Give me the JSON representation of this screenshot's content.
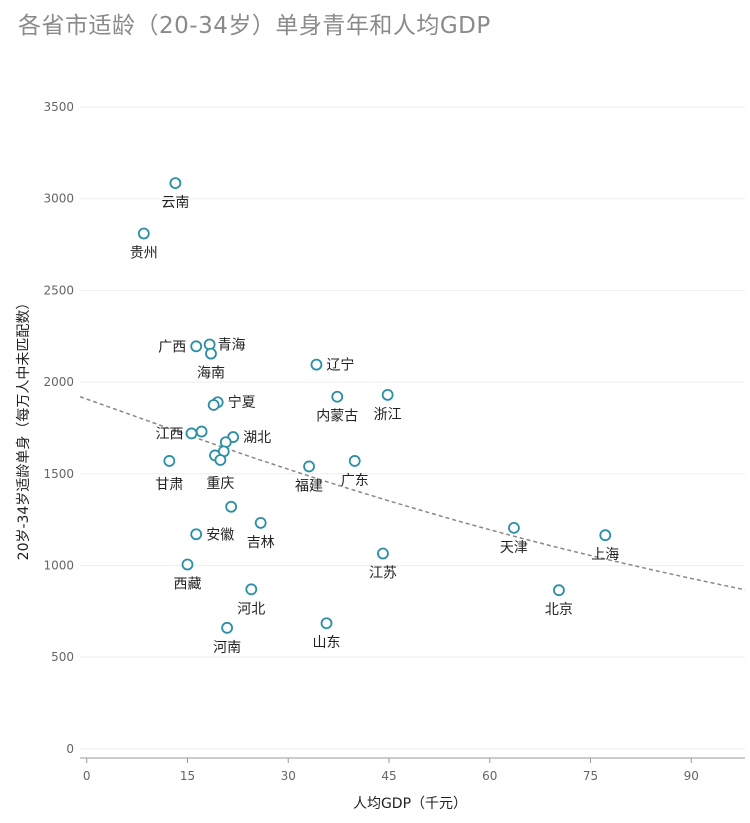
{
  "chart_data": {
    "type": "scatter",
    "title": "各省市适龄（20-34岁）单身青年和人均GDP",
    "xlabel": "人均GDP（千元）",
    "ylabel": "20岁-34岁适龄单身（每万人中未匹配数）",
    "xlim": [
      -1,
      98
    ],
    "ylim": [
      -50,
      3620
    ],
    "xticks": [
      0,
      15,
      30,
      45,
      60,
      75,
      90
    ],
    "yticks": [
      0,
      500,
      1000,
      1500,
      2000,
      2500,
      3000,
      3500
    ],
    "grid": true,
    "colors": {
      "point": "#2a8fa5",
      "trend": "#888888"
    },
    "points": [
      {
        "label": "云南",
        "x": 13.2,
        "y": 3085
      },
      {
        "label": "贵州",
        "x": 8.5,
        "y": 2810
      },
      {
        "label": "广西",
        "x": 16.3,
        "y": 2195
      },
      {
        "label": "青海",
        "x": 18.3,
        "y": 2205
      },
      {
        "label": "海南",
        "x": 18.5,
        "y": 2155
      },
      {
        "label": "辽宁",
        "x": 34.2,
        "y": 2095
      },
      {
        "label": "内蒙古",
        "x": 37.3,
        "y": 1920
      },
      {
        "label": "浙江",
        "x": 44.8,
        "y": 1930
      },
      {
        "label": "宁夏",
        "x": 19.5,
        "y": 1890
      },
      {
        "label": "",
        "x": 18.9,
        "y": 1875
      },
      {
        "label": "江西",
        "x": 15.6,
        "y": 1720
      },
      {
        "label": "",
        "x": 17.1,
        "y": 1730
      },
      {
        "label": "湖北",
        "x": 21.8,
        "y": 1700
      },
      {
        "label": "",
        "x": 20.7,
        "y": 1672
      },
      {
        "label": "",
        "x": 20.4,
        "y": 1622
      },
      {
        "label": "",
        "x": 19.1,
        "y": 1600
      },
      {
        "label": "重庆",
        "x": 19.9,
        "y": 1575
      },
      {
        "label": "甘肃",
        "x": 12.3,
        "y": 1570
      },
      {
        "label": "福建",
        "x": 33.1,
        "y": 1540
      },
      {
        "label": "广东",
        "x": 39.9,
        "y": 1570
      },
      {
        "label": "",
        "x": 21.5,
        "y": 1320
      },
      {
        "label": "吉林",
        "x": 25.9,
        "y": 1232
      },
      {
        "label": "安徽",
        "x": 16.3,
        "y": 1170
      },
      {
        "label": "天津",
        "x": 63.6,
        "y": 1205
      },
      {
        "label": "上海",
        "x": 77.2,
        "y": 1165
      },
      {
        "label": "江苏",
        "x": 44.1,
        "y": 1065
      },
      {
        "label": "西藏",
        "x": 15.0,
        "y": 1005
      },
      {
        "label": "河北",
        "x": 24.5,
        "y": 870
      },
      {
        "label": "北京",
        "x": 70.3,
        "y": 865
      },
      {
        "label": "山东",
        "x": 35.7,
        "y": 685
      },
      {
        "label": "河南",
        "x": 20.9,
        "y": 660
      }
    ],
    "trendline": {
      "x": [
        -1,
        5,
        10,
        15,
        20,
        25,
        30,
        35,
        40,
        45,
        50,
        55,
        60,
        65,
        70,
        75,
        80,
        85,
        90,
        98
      ],
      "y": [
        1920,
        1842,
        1777,
        1712,
        1648,
        1585,
        1525,
        1465,
        1408,
        1352,
        1298,
        1245,
        1195,
        1146,
        1099,
        1054,
        1011,
        969,
        929,
        867
      ]
    }
  }
}
